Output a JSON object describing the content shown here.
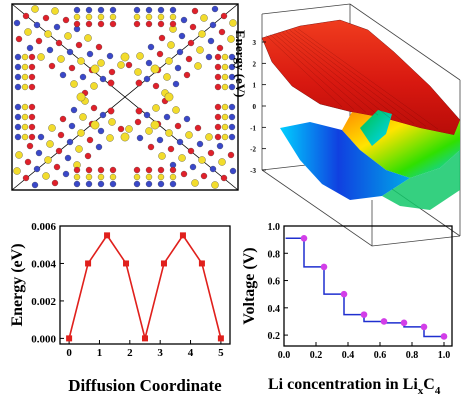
{
  "panels": {
    "crystal_structure": {
      "colors": {
        "yellow": "#f2dc2c",
        "blue": "#3a48c9",
        "red": "#e0202a"
      }
    },
    "energy_surface": {
      "zlabel": "Energy (eV)",
      "zticks": [
        "3",
        "2",
        "1",
        "0",
        "-1",
        "-2",
        "-3"
      ],
      "colormap": [
        "#0000c8",
        "#00c8ff",
        "#00e040",
        "#ffe000",
        "#ff8000",
        "#e00000"
      ]
    }
  },
  "chart_data": [
    {
      "type": "line",
      "xlabel": "Diffusion Coordinate",
      "ylabel": "Energy (eV)",
      "x": [
        0,
        0.625,
        1.25,
        1.875,
        2.5,
        3.125,
        3.75,
        4.375,
        5
      ],
      "y": [
        0.0,
        0.004,
        0.0055,
        0.004,
        0.0,
        0.004,
        0.0055,
        0.004,
        0.0
      ],
      "xlim": [
        -0.3,
        5.3
      ],
      "ylim": [
        -0.0003,
        0.006
      ],
      "xticks": [
        "0",
        "1",
        "2",
        "3",
        "4",
        "5"
      ],
      "yticks": [
        "0.000",
        "0.002",
        "0.004",
        "0.006"
      ],
      "color": "#e0201c",
      "marker": "square"
    },
    {
      "type": "line",
      "step": true,
      "xlabel": "Li concentration in Li",
      "xlabel_sub1": "x",
      "xlabel_mid": "C",
      "xlabel_sub2": "4",
      "ylabel": "Voltage (V)",
      "x": [
        0.125,
        0.25,
        0.375,
        0.5,
        0.625,
        0.75,
        0.875,
        1.0
      ],
      "y": [
        0.91,
        0.7,
        0.5,
        0.35,
        0.3,
        0.29,
        0.26,
        0.19
      ],
      "xlim": [
        0,
        1.05
      ],
      "ylim": [
        0.12,
        1.0
      ],
      "xticks": [
        "0.0",
        "0.2",
        "0.4",
        "0.6",
        "0.8",
        "1.0"
      ],
      "yticks": [
        "0.2",
        "0.4",
        "0.6",
        "0.8",
        "1.0"
      ],
      "line_color": "#1f2fcf",
      "marker_color": "#d23ee8"
    }
  ]
}
